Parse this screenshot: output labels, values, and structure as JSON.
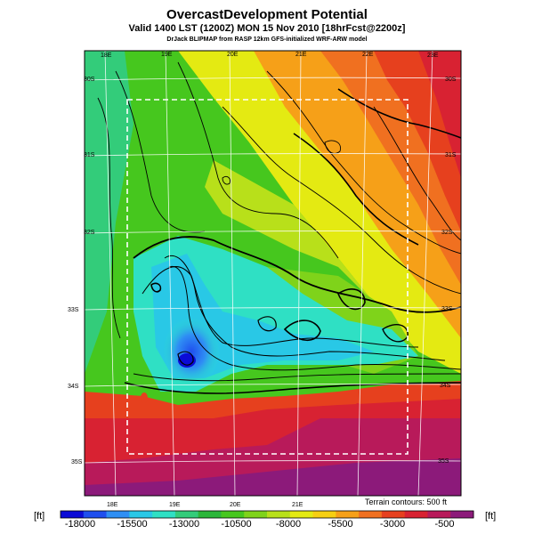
{
  "title": "OvercastDevelopment Potential",
  "subtitle": "Valid 1400 LST (1200Z) MON 15 Nov 2010 [18hrFcst@2200z]",
  "credit": "DrJack BLIPMAP from RASP 12km GFS-initialized WRF-ARW model",
  "terrain_note": "Terrain contours: 500 ft",
  "unit_label": "[ft]",
  "lon_labels": [
    "18E",
    "19E",
    "20E",
    "21E",
    "22E",
    "23E"
  ],
  "lon_labels_bottom": [
    "18E",
    "19E",
    "20E",
    "21E"
  ],
  "lat_labels_left": [
    "30S",
    "31S",
    "32S",
    "33S",
    "34S",
    "35S"
  ],
  "lat_labels_right": [
    "30S",
    "31S",
    "32S",
    "33S",
    "34S",
    "35S"
  ],
  "colorbar": {
    "ticks": [
      "-18000",
      "-15500",
      "-13000",
      "-10500",
      "-8000",
      "-5500",
      "-3000",
      "-500"
    ],
    "colors": [
      "#0b0bd6",
      "#1f4fee",
      "#2f8ff4",
      "#29c8e6",
      "#2fe0c4",
      "#33cc7a",
      "#2bb63a",
      "#46c71e",
      "#7fd31a",
      "#b8e01a",
      "#e4ea12",
      "#f6cf12",
      "#f6a018",
      "#f07020",
      "#e6401e",
      "#d82232",
      "#b81a5a",
      "#8c1a7a"
    ]
  }
}
